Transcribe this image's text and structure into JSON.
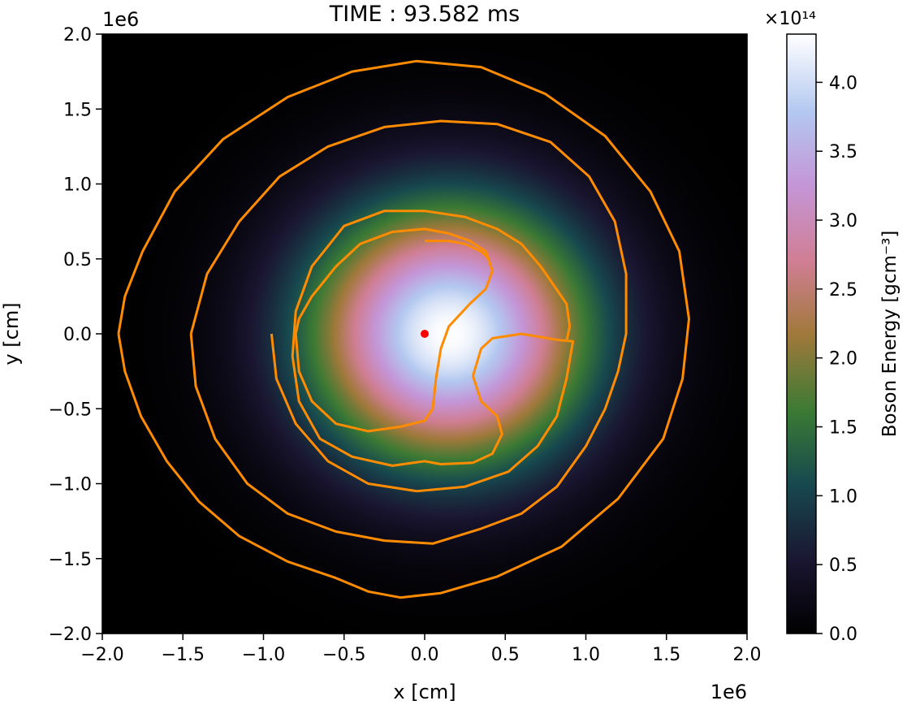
{
  "chart_data": {
    "type": "heatmap",
    "title": "TIME : 93.582 ms",
    "xlabel": "x [cm]",
    "ylabel": "y [cm]",
    "x_offset_label": "1e6",
    "y_offset_label": "1e6",
    "xlim": [
      -2.0,
      2.0
    ],
    "ylim": [
      -2.0,
      2.0
    ],
    "x_ticks": [
      "−2.0",
      "−1.5",
      "−1.0",
      "−0.5",
      "0.0",
      "0.5",
      "1.0",
      "1.5",
      "2.0"
    ],
    "x_tick_values": [
      -2.0,
      -1.5,
      -1.0,
      -0.5,
      0.0,
      0.5,
      1.0,
      1.5,
      2.0
    ],
    "y_ticks": [
      "2.0",
      "1.5",
      "1.0",
      "0.5",
      "0.0",
      "−0.5",
      "−1.0",
      "−1.5",
      "−2.0"
    ],
    "y_tick_values": [
      2.0,
      1.5,
      1.0,
      0.5,
      0.0,
      -0.5,
      -1.0,
      -1.5,
      -2.0
    ],
    "colorbar": {
      "label": "Boson Energy [gcm⁻³]",
      "exponent_label": "×10¹⁴",
      "range": [
        0.0,
        4.35
      ],
      "ticks": [
        "0.0",
        "0.5",
        "1.0",
        "1.5",
        "2.0",
        "2.5",
        "3.0",
        "3.5",
        "4.0"
      ],
      "tick_values": [
        0.0,
        0.5,
        1.0,
        1.5,
        2.0,
        2.5,
        3.0,
        3.5,
        4.0
      ],
      "colormap": "cubehelix"
    },
    "heatmap_peak": {
      "x": 0.15,
      "y": 0.0,
      "value": 4.35,
      "sigma": 0.6
    },
    "contour_color": "#ff8c00",
    "marker": {
      "x": 0.0,
      "y": 0.0,
      "color": "#ff0000"
    },
    "contours": [
      [
        [
          -1.9,
          0.0
        ],
        [
          -1.86,
          -0.25
        ],
        [
          -1.76,
          -0.55
        ],
        [
          -1.6,
          -0.85
        ],
        [
          -1.4,
          -1.12
        ],
        [
          -1.15,
          -1.35
        ],
        [
          -0.85,
          -1.52
        ],
        [
          -0.55,
          -1.63
        ],
        [
          -0.35,
          -1.72
        ],
        [
          -0.15,
          -1.76
        ],
        [
          0.1,
          -1.73
        ],
        [
          0.45,
          -1.62
        ],
        [
          0.85,
          -1.42
        ],
        [
          1.2,
          -1.1
        ],
        [
          1.48,
          -0.7
        ],
        [
          1.6,
          -0.3
        ],
        [
          1.64,
          0.1
        ],
        [
          1.58,
          0.55
        ],
        [
          1.4,
          0.95
        ],
        [
          1.12,
          1.32
        ],
        [
          0.75,
          1.6
        ],
        [
          0.35,
          1.78
        ],
        [
          -0.05,
          1.82
        ],
        [
          -0.45,
          1.75
        ],
        [
          -0.85,
          1.58
        ],
        [
          -1.25,
          1.3
        ],
        [
          -1.55,
          0.95
        ],
        [
          -1.75,
          0.55
        ],
        [
          -1.86,
          0.25
        ],
        [
          -1.9,
          0.0
        ]
      ],
      [
        [
          -1.45,
          0.0
        ],
        [
          -1.42,
          -0.35
        ],
        [
          -1.3,
          -0.7
        ],
        [
          -1.1,
          -1.0
        ],
        [
          -0.85,
          -1.2
        ],
        [
          -0.55,
          -1.32
        ],
        [
          -0.25,
          -1.38
        ],
        [
          0.05,
          -1.4
        ],
        [
          0.35,
          -1.3
        ],
        [
          0.6,
          -1.2
        ],
        [
          0.82,
          -1.02
        ],
        [
          1.0,
          -0.75
        ],
        [
          1.12,
          -0.5
        ],
        [
          1.2,
          -0.25
        ],
        [
          1.25,
          0.0
        ],
        [
          1.25,
          0.4
        ],
        [
          1.18,
          0.75
        ],
        [
          1.02,
          1.05
        ],
        [
          0.78,
          1.28
        ],
        [
          0.45,
          1.4
        ],
        [
          0.1,
          1.42
        ],
        [
          -0.25,
          1.38
        ],
        [
          -0.6,
          1.25
        ],
        [
          -0.9,
          1.05
        ],
        [
          -1.15,
          0.75
        ],
        [
          -1.35,
          0.4
        ],
        [
          -1.45,
          0.0
        ]
      ],
      [
        [
          -0.95,
          0.0
        ],
        [
          -0.92,
          -0.3
        ],
        [
          -0.8,
          -0.6
        ],
        [
          -0.6,
          -0.85
        ],
        [
          -0.35,
          -1.0
        ],
        [
          -0.05,
          -1.05
        ],
        [
          0.25,
          -1.02
        ],
        [
          0.52,
          -0.92
        ],
        [
          0.7,
          -0.75
        ],
        [
          0.82,
          -0.55
        ],
        [
          0.88,
          -0.3
        ],
        [
          0.92,
          -0.05
        ],
        [
          0.82,
          -0.04
        ],
        [
          0.6,
          0.0
        ],
        [
          0.42,
          -0.03
        ],
        [
          0.35,
          -0.1
        ],
        [
          0.3,
          -0.28
        ],
        [
          0.35,
          -0.45
        ],
        [
          0.45,
          -0.55
        ],
        [
          0.48,
          -0.67
        ],
        [
          0.42,
          -0.8
        ],
        [
          0.3,
          -0.86
        ],
        [
          0.1,
          -0.87
        ],
        [
          0.0,
          -0.85
        ]
      ],
      [
        [
          0.4,
          0.5
        ],
        [
          0.35,
          0.55
        ],
        [
          0.25,
          0.6
        ],
        [
          0.15,
          0.62
        ],
        [
          0.0,
          0.62
        ]
      ],
      [
        [
          0.0,
          -0.85
        ],
        [
          -0.2,
          -0.88
        ],
        [
          -0.45,
          -0.82
        ],
        [
          -0.65,
          -0.7
        ],
        [
          -0.78,
          -0.45
        ],
        [
          -0.82,
          -0.15
        ],
        [
          -0.8,
          0.15
        ],
        [
          -0.7,
          0.45
        ],
        [
          -0.5,
          0.72
        ],
        [
          -0.25,
          0.82
        ],
        [
          0.0,
          0.82
        ],
        [
          0.25,
          0.78
        ],
        [
          0.45,
          0.7
        ],
        [
          0.6,
          0.6
        ],
        [
          0.72,
          0.45
        ],
        [
          0.88,
          0.2
        ],
        [
          0.9,
          0.05
        ]
      ],
      [
        [
          0.9,
          0.05
        ],
        [
          0.88,
          -0.05
        ]
      ],
      [
        [
          -0.8,
          0.0
        ],
        [
          -0.78,
          -0.25
        ],
        [
          -0.7,
          -0.45
        ],
        [
          -0.55,
          -0.6
        ],
        [
          -0.35,
          -0.65
        ],
        [
          -0.15,
          -0.62
        ],
        [
          0.0,
          -0.58
        ],
        [
          0.05,
          -0.5
        ],
        [
          0.07,
          -0.3
        ],
        [
          0.1,
          -0.1
        ],
        [
          0.15,
          0.05
        ],
        [
          0.28,
          0.2
        ],
        [
          0.38,
          0.3
        ],
        [
          0.42,
          0.42
        ],
        [
          0.38,
          0.55
        ],
        [
          0.28,
          0.62
        ],
        [
          0.15,
          0.67
        ],
        [
          0.0,
          0.7
        ],
        [
          -0.2,
          0.68
        ],
        [
          -0.4,
          0.6
        ],
        [
          -0.55,
          0.45
        ],
        [
          -0.7,
          0.25
        ],
        [
          -0.78,
          0.1
        ],
        [
          -0.8,
          0.0
        ]
      ]
    ]
  }
}
